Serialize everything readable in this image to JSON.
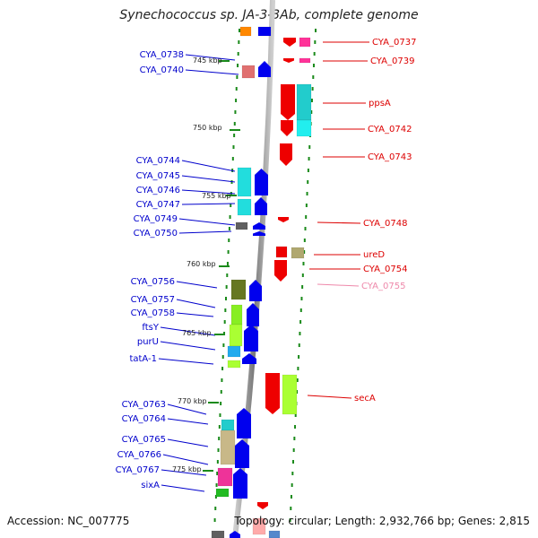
{
  "header": {
    "title": "Synechococcus sp. JA-3-3Ab, complete genome"
  },
  "footer": {
    "accession": "Accession: NC_007775",
    "topology": "Topology: circular; Length: 2,932,766 bp; Genes: 2,815"
  },
  "colors": {
    "left_label": "#0000cc",
    "right_label": "#dd0000",
    "faded_label": "#ee88aa",
    "tick": "#1a8a1a",
    "backbone": "#8f8f8f"
  },
  "scale_marks": [
    "745 kbp",
    "750 kbp",
    "755 kbp",
    "760 kbp",
    "765 kbp",
    "770 kbp",
    "775 kbp"
  ],
  "left_labels": [
    "CYA_0738",
    "CYA_0740",
    "CYA_0744",
    "CYA_0745",
    "CYA_0746",
    "CYA_0747",
    "CYA_0749",
    "CYA_0750",
    "CYA_0756",
    "CYA_0757",
    "CYA_0758",
    "ftsY",
    "purU",
    "tatA-1",
    "CYA_0763",
    "CYA_0764",
    "CYA_0765",
    "CYA_0766",
    "CYA_0767",
    "sixA"
  ],
  "right_labels": [
    "CYA_0737",
    "CYA_0739",
    "ppsA",
    "CYA_0742",
    "CYA_0743",
    "CYA_0748",
    "ureD",
    "CYA_0754",
    "CYA_0755",
    "secA"
  ]
}
